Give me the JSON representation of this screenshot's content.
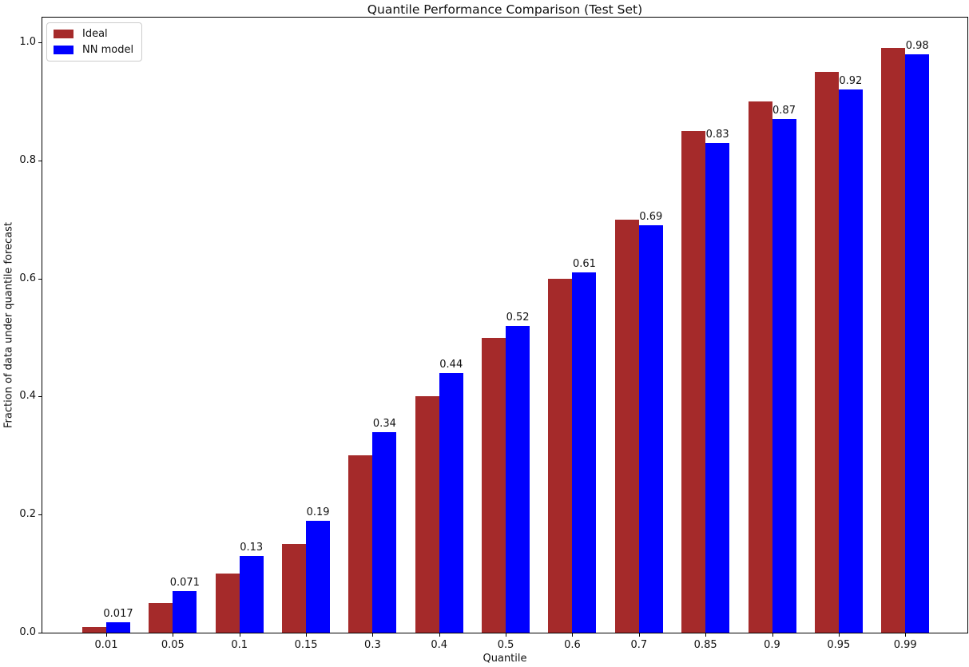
{
  "chart_data": {
    "type": "bar",
    "title": "Quantile Performance Comparison (Test Set)",
    "xlabel": "Quantile",
    "ylabel": "Fraction of data under quantile forecast",
    "categories": [
      "0.01",
      "0.05",
      "0.1",
      "0.15",
      "0.3",
      "0.4",
      "0.5",
      "0.6",
      "0.7",
      "0.85",
      "0.9",
      "0.95",
      "0.99"
    ],
    "series": [
      {
        "name": "Ideal",
        "color": "#A52A2A",
        "values": [
          0.01,
          0.05,
          0.1,
          0.15,
          0.3,
          0.4,
          0.5,
          0.6,
          0.7,
          0.85,
          0.9,
          0.95,
          0.99
        ]
      },
      {
        "name": "NN model",
        "color": "#0000FF",
        "values": [
          0.017,
          0.071,
          0.13,
          0.19,
          0.34,
          0.44,
          0.52,
          0.61,
          0.69,
          0.83,
          0.87,
          0.92,
          0.98
        ],
        "bar_labels": [
          "0.017",
          "0.071",
          "0.13",
          "0.19",
          "0.34",
          "0.44",
          "0.52",
          "0.61",
          "0.69",
          "0.83",
          "0.87",
          "0.92",
          "0.98"
        ]
      }
    ],
    "yticks": [
      "0.0",
      "0.2",
      "0.4",
      "0.6",
      "0.8",
      "1.0"
    ],
    "ylim": [
      0,
      1.042
    ],
    "grid": false,
    "legend_position": "upper left"
  }
}
